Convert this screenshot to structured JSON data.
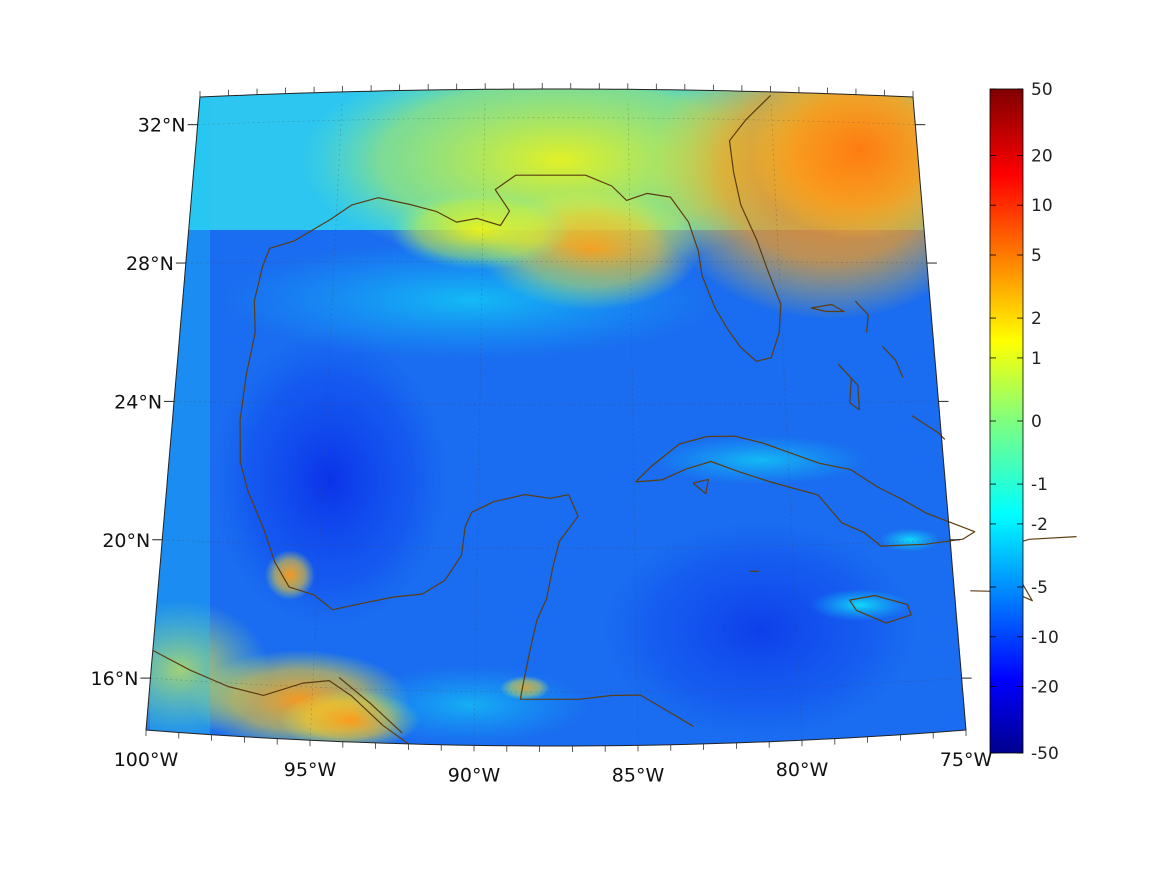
{
  "map": {
    "lon_ticks": [
      {
        "value": -100,
        "label": "100°W"
      },
      {
        "value": -95,
        "label": "95°W"
      },
      {
        "value": -90,
        "label": "90°W"
      },
      {
        "value": -85,
        "label": "85°W"
      },
      {
        "value": -80,
        "label": "80°W"
      },
      {
        "value": -75,
        "label": "75°W"
      }
    ],
    "lat_ticks": [
      {
        "value": 16,
        "label": "16°N"
      },
      {
        "value": 20,
        "label": "20°N"
      },
      {
        "value": 24,
        "label": "24°N"
      },
      {
        "value": 28,
        "label": "28°N"
      },
      {
        "value": 32,
        "label": "32°N"
      }
    ],
    "extent": {
      "lon": [
        -100,
        -75
      ],
      "lat": [
        14.5,
        32.8
      ]
    },
    "projection": "conic",
    "grid": true,
    "coastline_color": "#5c3d12",
    "colormap": "jet"
  },
  "colorbar": {
    "ticks": [
      "50",
      "20",
      "10",
      "5",
      "2",
      "1",
      "0",
      "-1",
      "-2",
      "-5",
      "-10",
      "-20",
      "-50"
    ],
    "range": [
      -50,
      50
    ],
    "scale": "symmetric-log"
  }
}
